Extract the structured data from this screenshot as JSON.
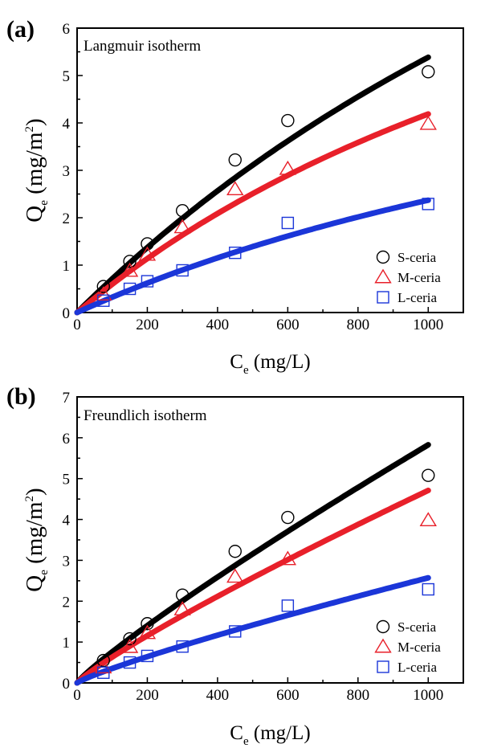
{
  "chart_data": [
    {
      "type": "scatter",
      "panel_label": "(a)",
      "annotation": "Langmuir isotherm",
      "xlabel": {
        "main": "C",
        "sub": "e",
        "rest": " (mg/L)"
      },
      "ylabel": {
        "main": "Q",
        "sub": "e",
        "rest": " (mg/m",
        "sup": "2",
        "close": ")"
      },
      "xlim": [
        0,
        1100
      ],
      "ylim": [
        0,
        6
      ],
      "xticks": [
        0,
        200,
        400,
        600,
        800,
        1000
      ],
      "yticks": [
        0,
        1,
        2,
        3,
        4,
        5,
        6
      ],
      "legend_position": "bottom-right",
      "series": [
        {
          "name": "S-ceria",
          "marker": "circle",
          "color": "#000000",
          "x": [
            75,
            150,
            200,
            300,
            450,
            600,
            1000
          ],
          "y": [
            0.55,
            1.08,
            1.45,
            2.15,
            3.22,
            4.05,
            5.08
          ],
          "fit": {
            "model": "langmuir",
            "qmax": 20.1,
            "K": 0.000366,
            "color": "#000000"
          }
        },
        {
          "name": "M-ceria",
          "marker": "triangle",
          "color": "#e8202a",
          "x": [
            75,
            150,
            200,
            300,
            450,
            600,
            1000
          ],
          "y": [
            0.38,
            0.88,
            1.22,
            1.8,
            2.6,
            3.03,
            3.98
          ],
          "fit": {
            "model": "langmuir",
            "qmax": 12.7,
            "K": 0.000492,
            "color": "#e8202a"
          }
        },
        {
          "name": "L-ceria",
          "marker": "square",
          "color": "#1b36d8",
          "x": [
            75,
            150,
            200,
            300,
            450,
            600,
            1000
          ],
          "y": [
            0.25,
            0.5,
            0.66,
            0.89,
            1.26,
            1.89,
            2.29
          ],
          "fit": {
            "model": "langmuir",
            "qmax": 8.0,
            "K": 0.000421,
            "color": "#1b36d8"
          }
        }
      ]
    },
    {
      "type": "scatter",
      "panel_label": "(b)",
      "annotation": "Freundlich isotherm",
      "xlabel": {
        "main": "C",
        "sub": "e",
        "rest": " (mg/L)"
      },
      "ylabel": {
        "main": "Q",
        "sub": "e",
        "rest": " (mg/m",
        "sup": "2",
        "close": ")"
      },
      "xlim": [
        0,
        1100
      ],
      "ylim": [
        0,
        7
      ],
      "xticks": [
        0,
        200,
        400,
        600,
        800,
        1000
      ],
      "yticks": [
        0,
        1,
        2,
        3,
        4,
        5,
        6,
        7
      ],
      "legend_position": "bottom-right",
      "series": [
        {
          "name": "S-ceria",
          "marker": "circle",
          "color": "#000000",
          "x": [
            75,
            150,
            200,
            300,
            450,
            600,
            1000
          ],
          "y": [
            0.55,
            1.08,
            1.45,
            2.15,
            3.22,
            4.05,
            5.08
          ],
          "fit": {
            "model": "freundlich",
            "K": 0.0129,
            "n": 1.13,
            "color": "#000000"
          }
        },
        {
          "name": "M-ceria",
          "marker": "triangle",
          "color": "#e8202a",
          "x": [
            75,
            150,
            200,
            300,
            450,
            600,
            1000
          ],
          "y": [
            0.38,
            0.88,
            1.22,
            1.8,
            2.6,
            3.03,
            3.98
          ],
          "fit": {
            "model": "freundlich",
            "K": 0.0113,
            "n": 1.145,
            "color": "#e8202a"
          }
        },
        {
          "name": "L-ceria",
          "marker": "square",
          "color": "#1b36d8",
          "x": [
            75,
            150,
            200,
            300,
            450,
            600,
            1000
          ],
          "y": [
            0.25,
            0.5,
            0.66,
            0.89,
            1.26,
            1.89,
            2.29
          ],
          "fit": {
            "model": "freundlich",
            "K": 0.00667,
            "n": 1.16,
            "color": "#1b36d8"
          }
        }
      ]
    }
  ]
}
